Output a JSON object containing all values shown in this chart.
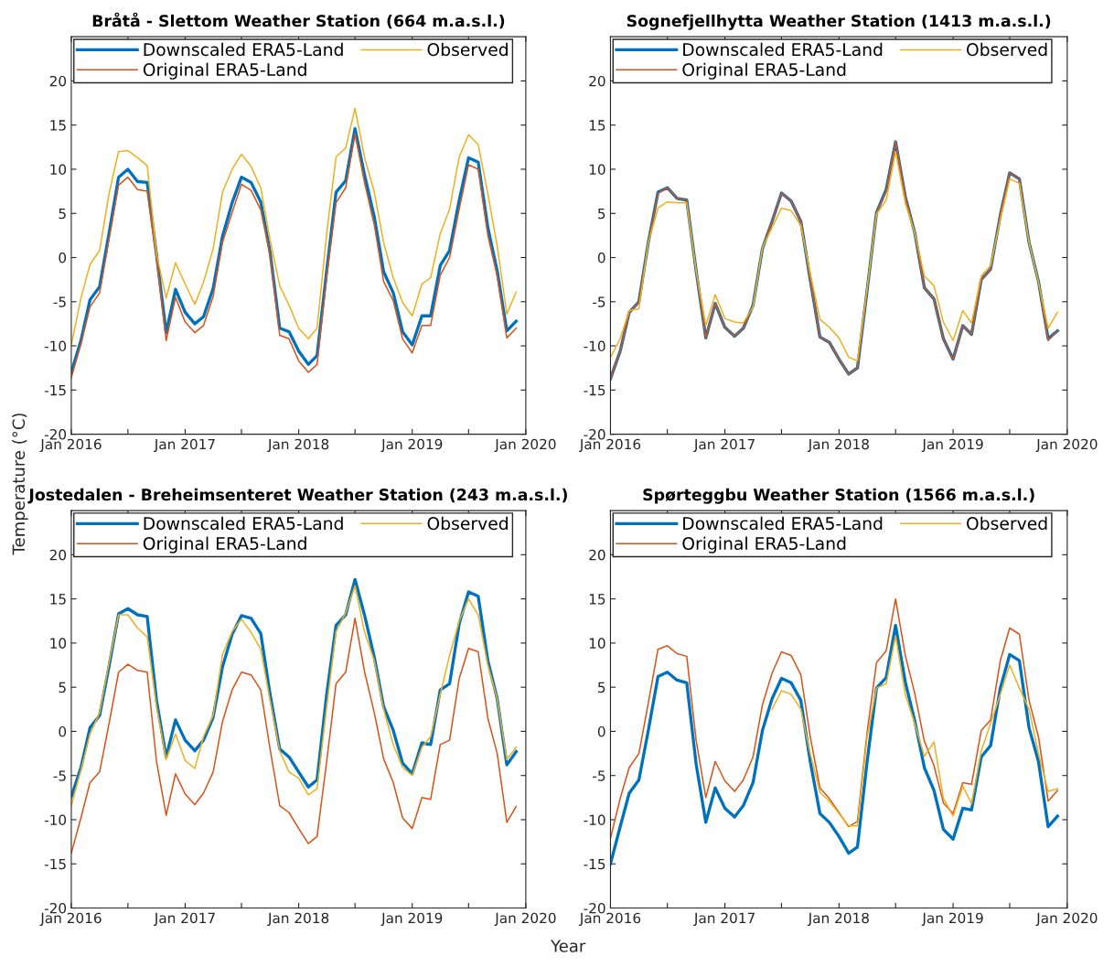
{
  "chart_data": [
    {
      "type": "line",
      "title": "Bråtå - Slettom Weather Station (664 m.a.s.l.)",
      "ylabel": "Temperature (°C)",
      "xlim": [
        "2016-01",
        "2020-01"
      ],
      "xticks": [
        {
          "value": "2016-01",
          "label": "Jan 2016"
        },
        {
          "value": "2016-07",
          "label": null
        },
        {
          "value": "2017-01",
          "label": "Jan 2017"
        },
        {
          "value": "2017-07",
          "label": null
        },
        {
          "value": "2018-01",
          "label": "Jan 2018"
        },
        {
          "value": "2018-07",
          "label": null
        },
        {
          "value": "2019-01",
          "label": "Jan 2019"
        },
        {
          "value": "2019-07",
          "label": null
        },
        {
          "value": "2020-01",
          "label": "Jan 2020"
        }
      ],
      "ylim": [
        -20,
        25
      ],
      "yticks": [
        -20,
        -15,
        -10,
        -5,
        0,
        5,
        10,
        15,
        20
      ],
      "grid": false,
      "legend": "top left",
      "x": [
        "2016-01",
        "2016-02",
        "2016-03",
        "2016-04",
        "2016-05",
        "2016-06",
        "2016-07",
        "2016-08",
        "2016-09",
        "2016-10",
        "2016-11",
        "2016-12",
        "2017-01",
        "2017-02",
        "2017-03",
        "2017-04",
        "2017-05",
        "2017-06",
        "2017-07",
        "2017-08",
        "2017-09",
        "2017-10",
        "2017-11",
        "2017-12",
        "2018-01",
        "2018-02",
        "2018-03",
        "2018-04",
        "2018-05",
        "2018-06",
        "2018-07",
        "2018-08",
        "2018-09",
        "2018-10",
        "2018-11",
        "2018-12",
        "2019-01",
        "2019-02",
        "2019-03",
        "2019-04",
        "2019-05",
        "2019-06",
        "2019-07",
        "2019-08",
        "2019-09",
        "2019-10",
        "2019-11",
        "2019-12"
      ],
      "series": [
        {
          "name": "Downscaled ERA5-Land",
          "color": "#0072bd",
          "values": [
            -13.0,
            -9.4,
            -4.8,
            -3.3,
            2.7,
            9.1,
            10.0,
            8.6,
            8.5,
            0.3,
            -8.5,
            -3.6,
            -6.2,
            -7.5,
            -6.7,
            -3.5,
            2.4,
            6.2,
            9.1,
            8.5,
            6.3,
            0.6,
            -8.0,
            -8.4,
            -10.6,
            -12.1,
            -11.1,
            -1.5,
            7.4,
            8.7,
            14.6,
            9.3,
            4.6,
            -1.6,
            -4.0,
            -8.4,
            -9.9,
            -6.6,
            -6.6,
            -0.9,
            0.8,
            6.5,
            11.3,
            10.8,
            3.4,
            -1.5,
            -8.3,
            -7.2
          ]
        },
        {
          "name": "Original ERA5-Land",
          "color": "#d95319",
          "values": [
            -13.6,
            -9.8,
            -5.6,
            -4.0,
            2.0,
            8.2,
            9.1,
            7.7,
            7.5,
            -0.1,
            -9.4,
            -4.5,
            -7.3,
            -8.5,
            -7.7,
            -4.4,
            1.7,
            5.1,
            8.3,
            7.6,
            5.4,
            0.3,
            -8.8,
            -9.2,
            -11.7,
            -13.0,
            -12.1,
            -2.1,
            6.2,
            7.9,
            14.0,
            8.4,
            3.7,
            -2.7,
            -4.9,
            -9.2,
            -10.8,
            -7.7,
            -7.7,
            -2.0,
            0.0,
            5.5,
            10.5,
            10.0,
            2.5,
            -2.1,
            -9.1,
            -8.0
          ]
        },
        {
          "name": "Observed",
          "color": "#edb120",
          "values": [
            -9.9,
            -4.6,
            -0.8,
            0.8,
            7.2,
            12.0,
            12.1,
            11.3,
            10.4,
            0.4,
            -4.6,
            -0.6,
            -3.0,
            -5.3,
            -2.8,
            1.0,
            7.4,
            10.0,
            11.7,
            10.3,
            7.9,
            2.0,
            -3.2,
            -5.4,
            -8.0,
            -9.2,
            -8.0,
            2.7,
            11.4,
            12.4,
            16.9,
            11.3,
            7.4,
            1.7,
            -2.3,
            -5.1,
            -6.6,
            -3.0,
            -2.3,
            2.7,
            5.5,
            11.4,
            13.9,
            12.8,
            7.2,
            1.3,
            -6.4,
            -3.9
          ]
        }
      ]
    },
    {
      "type": "line",
      "title": "Sognefjellhytta Weather Station (1413 m.a.s.l.)",
      "xlim": [
        "2016-01",
        "2020-01"
      ],
      "xticks": [
        {
          "value": "2016-01",
          "label": "Jan 2016"
        },
        {
          "value": "2016-07",
          "label": null
        },
        {
          "value": "2017-01",
          "label": "Jan 2017"
        },
        {
          "value": "2017-07",
          "label": null
        },
        {
          "value": "2018-01",
          "label": "Jan 2018"
        },
        {
          "value": "2018-07",
          "label": null
        },
        {
          "value": "2019-01",
          "label": "Jan 2019"
        },
        {
          "value": "2019-07",
          "label": null
        },
        {
          "value": "2020-01",
          "label": "Jan 2020"
        }
      ],
      "ylim": [
        -20,
        25
      ],
      "yticks": [
        -20,
        -15,
        -10,
        -5,
        0,
        5,
        10,
        15,
        20
      ],
      "grid": false,
      "legend": "top left",
      "x": [
        "2016-01",
        "2016-02",
        "2016-03",
        "2016-04",
        "2016-05",
        "2016-06",
        "2016-07",
        "2016-08",
        "2016-09",
        "2016-10",
        "2016-11",
        "2016-12",
        "2017-01",
        "2017-02",
        "2017-03",
        "2017-04",
        "2017-05",
        "2017-06",
        "2017-07",
        "2017-08",
        "2017-09",
        "2017-10",
        "2017-11",
        "2017-12",
        "2018-01",
        "2018-02",
        "2018-03",
        "2018-04",
        "2018-05",
        "2018-06",
        "2018-07",
        "2018-08",
        "2018-09",
        "2018-10",
        "2018-11",
        "2018-12",
        "2019-01",
        "2019-02",
        "2019-03",
        "2019-04",
        "2019-05",
        "2019-06",
        "2019-07",
        "2019-08",
        "2019-09",
        "2019-10",
        "2019-11",
        "2019-12"
      ],
      "series": [
        {
          "name": "Downscaled ERA5-Land",
          "color": "#0072bd",
          "values": [
            -13.7,
            -10.6,
            -6.2,
            -5.0,
            1.7,
            7.4,
            7.9,
            6.7,
            6.5,
            -1.5,
            -9.1,
            -5.2,
            -7.9,
            -8.9,
            -8.0,
            -5.4,
            1.0,
            4.1,
            7.3,
            6.4,
            4.1,
            -2.5,
            -9.0,
            -9.6,
            -11.5,
            -13.2,
            -12.5,
            -3.7,
            5.1,
            7.7,
            13.1,
            6.9,
            2.7,
            -3.4,
            -4.7,
            -9.2,
            -11.5,
            -7.7,
            -8.7,
            -2.5,
            -1.3,
            4.8,
            9.6,
            8.9,
            1.7,
            -2.7,
            -9.2,
            -8.3
          ]
        },
        {
          "name": "Original ERA5-Land",
          "color": "#d95319",
          "values": [
            -13.7,
            -10.6,
            -6.2,
            -5.0,
            1.7,
            7.3,
            7.9,
            6.7,
            6.5,
            -1.5,
            -9.1,
            -5.2,
            -7.9,
            -8.9,
            -8.0,
            -5.4,
            1.0,
            4.1,
            7.3,
            6.4,
            4.1,
            -2.5,
            -9.0,
            -9.6,
            -11.5,
            -13.2,
            -12.5,
            -3.7,
            5.1,
            7.5,
            13.1,
            6.9,
            2.7,
            -3.4,
            -4.7,
            -9.2,
            -11.5,
            -7.7,
            -8.7,
            -2.5,
            -1.3,
            4.8,
            9.6,
            8.9,
            1.7,
            -2.7,
            -9.4,
            -8.3
          ]
        },
        {
          "name": "Observed",
          "color": "#edb120",
          "values": [
            -11.3,
            -9.2,
            -6.0,
            -5.8,
            1.7,
            5.6,
            6.3,
            6.2,
            6.2,
            -1.5,
            -7.7,
            -4.2,
            -6.9,
            -7.3,
            -7.4,
            -5.6,
            1.1,
            3.4,
            5.6,
            5.3,
            3.6,
            -1.8,
            -7.0,
            -7.9,
            -9.1,
            -11.3,
            -11.7,
            -3.5,
            4.9,
            6.5,
            12.0,
            6.2,
            2.7,
            -2.1,
            -3.2,
            -7.3,
            -9.4,
            -6.0,
            -7.4,
            -2.1,
            -0.9,
            4.3,
            8.9,
            8.4,
            1.7,
            -2.8,
            -8.0,
            -6.2
          ]
        }
      ]
    },
    {
      "type": "line",
      "title": "Jostedalen - Breheimsenteret Weather Station (243 m.a.s.l.)",
      "xlabel": "Year",
      "xlim": [
        "2016-01",
        "2020-01"
      ],
      "xticks": [
        {
          "value": "2016-01",
          "label": "Jan 2016"
        },
        {
          "value": "2016-07",
          "label": null
        },
        {
          "value": "2017-01",
          "label": "Jan 2017"
        },
        {
          "value": "2017-07",
          "label": null
        },
        {
          "value": "2018-01",
          "label": "Jan 2018"
        },
        {
          "value": "2018-07",
          "label": null
        },
        {
          "value": "2019-01",
          "label": "Jan 2019"
        },
        {
          "value": "2019-07",
          "label": null
        },
        {
          "value": "2020-01",
          "label": "Jan 2020"
        }
      ],
      "ylim": [
        -20,
        25
      ],
      "yticks": [
        -20,
        -15,
        -10,
        -5,
        0,
        5,
        10,
        15,
        20
      ],
      "grid": false,
      "legend": "top left",
      "x": [
        "2016-01",
        "2016-02",
        "2016-03",
        "2016-04",
        "2016-05",
        "2016-06",
        "2016-07",
        "2016-08",
        "2016-09",
        "2016-10",
        "2016-11",
        "2016-12",
        "2017-01",
        "2017-02",
        "2017-03",
        "2017-04",
        "2017-05",
        "2017-06",
        "2017-07",
        "2017-08",
        "2017-09",
        "2017-10",
        "2017-11",
        "2017-12",
        "2018-01",
        "2018-02",
        "2018-03",
        "2018-04",
        "2018-05",
        "2018-06",
        "2018-07",
        "2018-08",
        "2018-09",
        "2018-10",
        "2018-11",
        "2018-12",
        "2019-01",
        "2019-02",
        "2019-03",
        "2019-04",
        "2019-05",
        "2019-06",
        "2019-07",
        "2019-08",
        "2019-09",
        "2019-10",
        "2019-11",
        "2019-12"
      ],
      "series": [
        {
          "name": "Downscaled ERA5-Land",
          "color": "#0072bd",
          "values": [
            -7.4,
            -4.1,
            0.4,
            1.8,
            7.3,
            13.3,
            13.9,
            13.2,
            13.0,
            3.5,
            -2.9,
            1.3,
            -1.0,
            -2.2,
            -1.0,
            1.6,
            7.3,
            11.0,
            13.1,
            12.8,
            11.1,
            4.2,
            -2.0,
            -2.9,
            -4.6,
            -6.3,
            -5.5,
            4.2,
            12.0,
            13.2,
            17.2,
            13.1,
            8.4,
            2.8,
            0.1,
            -3.6,
            -4.8,
            -1.3,
            -1.5,
            4.7,
            5.4,
            12.2,
            15.8,
            15.3,
            8.0,
            3.7,
            -3.8,
            -2.3
          ]
        },
        {
          "name": "Original ERA5-Land",
          "color": "#d95319",
          "values": [
            -13.8,
            -9.8,
            -5.8,
            -4.6,
            0.8,
            6.7,
            7.6,
            6.9,
            6.7,
            -3.4,
            -9.5,
            -4.8,
            -7.1,
            -8.3,
            -7.0,
            -4.6,
            1.1,
            4.7,
            6.7,
            6.4,
            4.7,
            -2.0,
            -8.4,
            -9.2,
            -11.0,
            -12.7,
            -11.9,
            -3.4,
            5.4,
            6.7,
            12.8,
            6.7,
            2.1,
            -3.1,
            -5.8,
            -9.8,
            -11.0,
            -7.5,
            -7.7,
            -1.5,
            -1.0,
            6.0,
            9.4,
            9.0,
            1.5,
            -2.5,
            -10.3,
            -8.5
          ]
        },
        {
          "name": "Observed",
          "color": "#edb120",
          "values": [
            -8.4,
            -4.4,
            -0.3,
            2.1,
            7.7,
            13.2,
            13.2,
            11.7,
            10.7,
            2.8,
            -3.2,
            -0.3,
            -3.3,
            -4.2,
            -0.6,
            1.8,
            8.7,
            11.3,
            12.7,
            11.2,
            9.3,
            3.5,
            -2.2,
            -4.6,
            -5.3,
            -7.2,
            -6.5,
            2.8,
            11.3,
            13.4,
            16.5,
            11.2,
            8.0,
            2.5,
            -1.5,
            -4.1,
            -5.0,
            -1.8,
            -0.6,
            4.2,
            8.6,
            12.5,
            15.0,
            13.2,
            7.5,
            3.7,
            -3.2,
            -1.8
          ]
        }
      ]
    },
    {
      "type": "line",
      "title": "Spørteggbu Weather Station (1566 m.a.s.l.)",
      "xlim": [
        "2016-01",
        "2020-01"
      ],
      "xticks": [
        {
          "value": "2016-01",
          "label": "Jan 2016"
        },
        {
          "value": "2016-07",
          "label": null
        },
        {
          "value": "2017-01",
          "label": "Jan 2017"
        },
        {
          "value": "2017-07",
          "label": null
        },
        {
          "value": "2018-01",
          "label": "Jan 2018"
        },
        {
          "value": "2018-07",
          "label": null
        },
        {
          "value": "2019-01",
          "label": "Jan 2019"
        },
        {
          "value": "2019-07",
          "label": null
        },
        {
          "value": "2020-01",
          "label": "Jan 2020"
        }
      ],
      "ylim": [
        -20,
        25
      ],
      "yticks": [
        -20,
        -15,
        -10,
        -5,
        0,
        5,
        10,
        15,
        20
      ],
      "grid": false,
      "legend": "top left",
      "x": [
        "2016-01",
        "2016-02",
        "2016-03",
        "2016-04",
        "2016-05",
        "2016-06",
        "2016-07",
        "2016-08",
        "2016-09",
        "2016-10",
        "2016-11",
        "2016-12",
        "2017-01",
        "2017-02",
        "2017-03",
        "2017-04",
        "2017-05",
        "2017-06",
        "2017-07",
        "2017-08",
        "2017-09",
        "2017-10",
        "2017-11",
        "2017-12",
        "2018-01",
        "2018-02",
        "2018-03",
        "2018-04",
        "2018-05",
        "2018-06",
        "2018-07",
        "2018-08",
        "2018-09",
        "2018-10",
        "2018-11",
        "2018-12",
        "2019-01",
        "2019-02",
        "2019-03",
        "2019-04",
        "2019-05",
        "2019-06",
        "2019-07",
        "2019-08",
        "2019-09",
        "2019-10",
        "2019-11",
        "2019-12"
      ],
      "series": [
        {
          "name": "Downscaled ERA5-Land",
          "color": "#0072bd",
          "values": [
            -15.0,
            -10.8,
            -7.0,
            -5.5,
            0.1,
            6.2,
            6.7,
            5.8,
            5.5,
            -3.7,
            -10.3,
            -6.4,
            -8.7,
            -9.7,
            -8.4,
            -5.8,
            0.1,
            3.7,
            6.0,
            5.5,
            3.5,
            -3.4,
            -9.3,
            -10.3,
            -11.9,
            -13.8,
            -13.1,
            -3.4,
            4.9,
            6.1,
            12.0,
            5.6,
            1.1,
            -4.1,
            -6.7,
            -11.1,
            -12.2,
            -8.7,
            -8.9,
            -2.9,
            -1.6,
            4.9,
            8.7,
            8.0,
            0.4,
            -3.4,
            -10.8,
            -9.6
          ]
        },
        {
          "name": "Original ERA5-Land",
          "color": "#d95319",
          "values": [
            -12.1,
            -7.6,
            -4.1,
            -2.5,
            3.2,
            9.3,
            9.7,
            8.8,
            8.5,
            -1.0,
            -7.5,
            -3.4,
            -5.6,
            -6.8,
            -5.5,
            -2.9,
            3.0,
            6.6,
            9.0,
            8.6,
            6.4,
            -0.6,
            -6.4,
            -7.6,
            -9.2,
            -10.8,
            -10.2,
            -0.1,
            7.8,
            9.1,
            15.0,
            8.6,
            4.2,
            -1.1,
            -3.9,
            -8.1,
            -9.3,
            -5.8,
            -6.0,
            0.1,
            1.3,
            8.0,
            11.7,
            11.0,
            3.5,
            -0.6,
            -7.9,
            -6.7
          ]
        },
        {
          "name": "Observed",
          "color": "#edb120",
          "values": [
            null,
            null,
            null,
            null,
            null,
            null,
            null,
            null,
            null,
            null,
            null,
            null,
            null,
            null,
            null,
            null,
            null,
            2.5,
            4.6,
            4.2,
            2.5,
            -2.5,
            -6.9,
            -7.9,
            -9.3,
            -10.7,
            -10.7,
            -0.6,
            4.9,
            5.4,
            10.8,
            4.2,
            0.8,
            -2.8,
            -1.2,
            -7.6,
            -9.6,
            -6.2,
            -8.2,
            -2.2,
            0.9,
            4.2,
            7.5,
            4.9,
            2.5,
            -2.5,
            -6.8,
            -6.5
          ]
        }
      ]
    }
  ]
}
